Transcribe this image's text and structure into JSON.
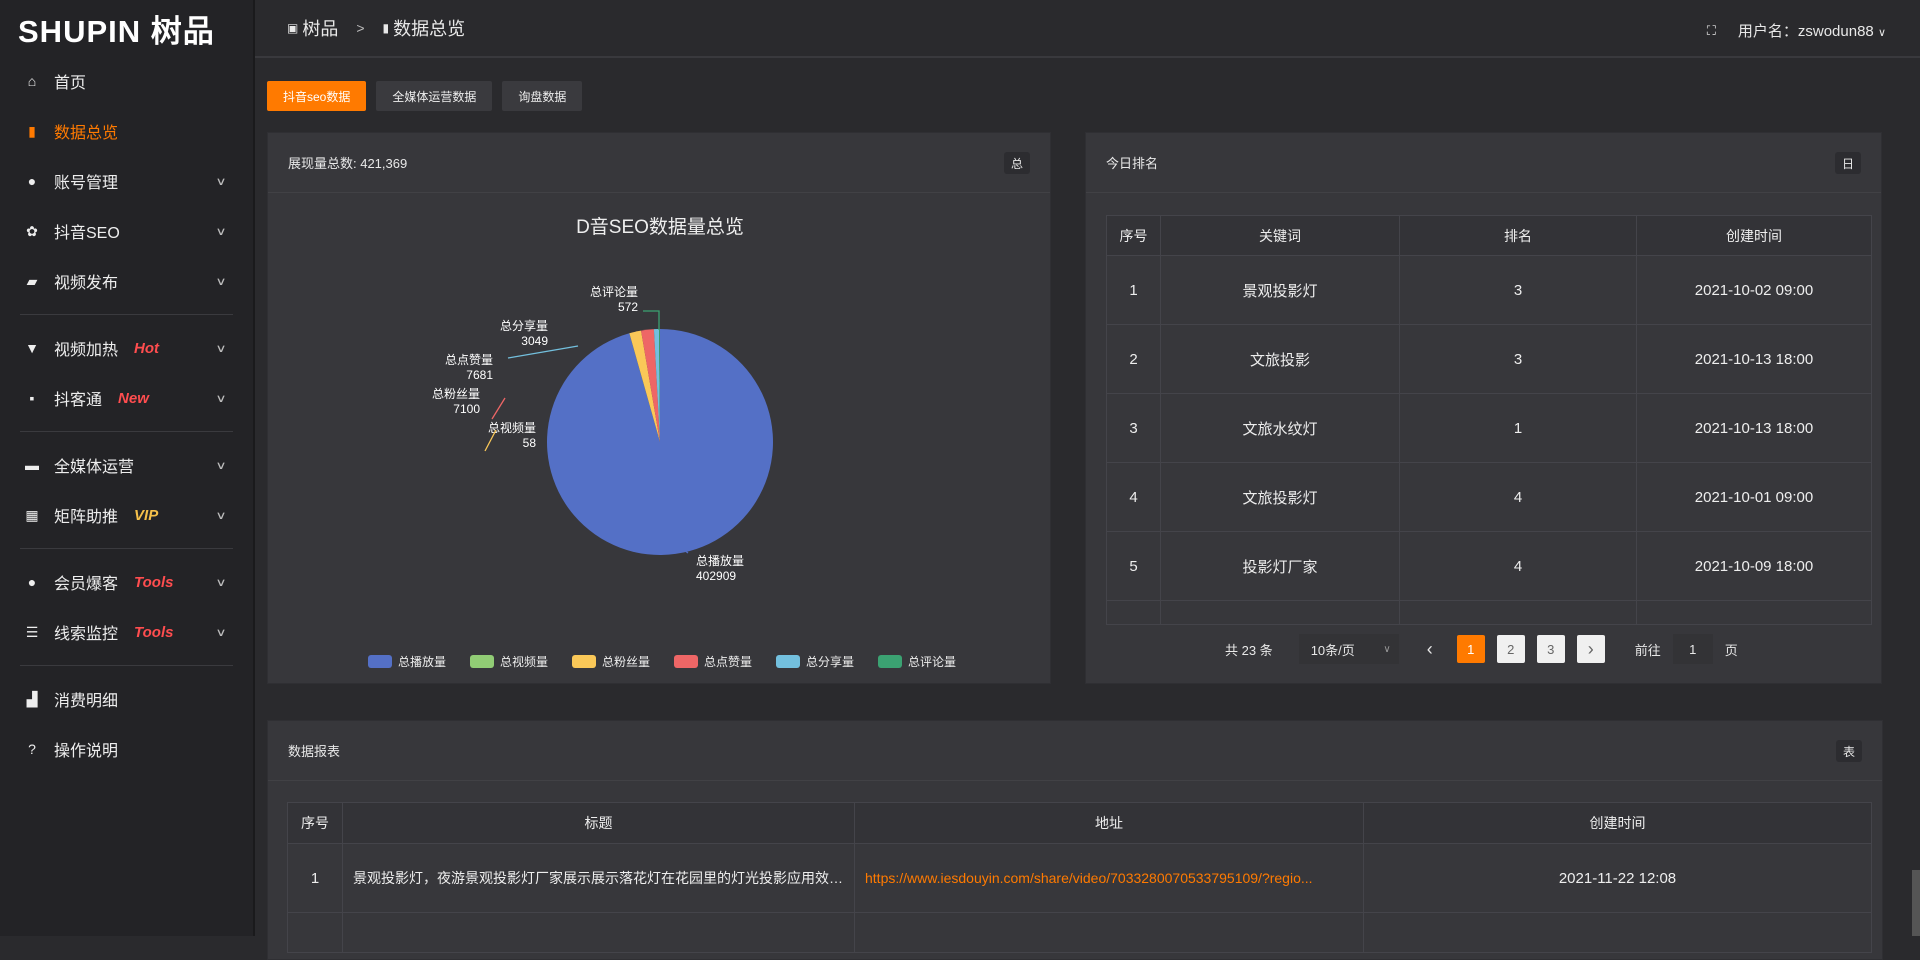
{
  "brand": {
    "logo_text": "SHUPIN 树品"
  },
  "breadcrumb": {
    "home": "树品",
    "separator": ">",
    "current": "数据总览"
  },
  "header": {
    "user_label": "用户名：zswodun88",
    "fullscreen_icon": "fullscreen-icon"
  },
  "sidebar": {
    "items": [
      {
        "label": "首页",
        "icon": "home-icon",
        "glyph": "⌂"
      },
      {
        "label": "数据总览",
        "icon": "bar-chart-icon",
        "glyph": "▮",
        "active": true
      },
      {
        "label": "账号管理",
        "icon": "user-icon",
        "glyph": "●",
        "expandable": true
      },
      {
        "label": "抖音SEO",
        "icon": "gear-icon",
        "glyph": "✿",
        "expandable": true
      },
      {
        "label": "视频发布",
        "icon": "camera-icon",
        "glyph": "▰",
        "expandable": true
      },
      {
        "label": "视频加热",
        "icon": "paint-roller-icon",
        "glyph": "▼",
        "badge": "Hot",
        "expandable": true
      },
      {
        "label": "抖客通",
        "icon": "chat-icon",
        "glyph": "▪",
        "badge": "New",
        "expandable": true
      },
      {
        "label": "全媒体运营",
        "icon": "monitor-icon",
        "glyph": "▬",
        "expandable": true
      },
      {
        "label": "矩阵助推",
        "icon": "grid-icon",
        "glyph": "▦",
        "badge": "VIP",
        "expandable": true
      },
      {
        "label": "会员爆客",
        "icon": "user-icon",
        "glyph": "●",
        "badge": "Tools",
        "expandable": true
      },
      {
        "label": "线索监控",
        "icon": "sliders-icon",
        "glyph": "☰",
        "badge": "Tools",
        "expandable": true
      },
      {
        "label": "消费明细",
        "icon": "wallet-icon",
        "glyph": "▟"
      },
      {
        "label": "操作说明",
        "icon": "question-icon",
        "glyph": "?"
      }
    ]
  },
  "colors": {
    "accent": "#ff7a00",
    "hot": "#ff4d4f",
    "vip": "#f5c04a"
  },
  "tabs": [
    "抖音seo数据",
    "全媒体运营数据",
    "询盘数据"
  ],
  "overview_card": {
    "title": "展现量总数: 421,369",
    "button": "总"
  },
  "chart_data": {
    "type": "pie",
    "title": "D音SEO数据量总览",
    "legend_position": "bottom",
    "series": [
      {
        "name": "总播放量",
        "value": 402909,
        "color": "#5470c6"
      },
      {
        "name": "总视频量",
        "value": 58,
        "color": "#91cc75"
      },
      {
        "name": "总粉丝量",
        "value": 7100,
        "color": "#fac858"
      },
      {
        "name": "总点赞量",
        "value": 7681,
        "color": "#ee6666"
      },
      {
        "name": "总分享量",
        "value": 3049,
        "color": "#73c0de"
      },
      {
        "name": "总评论量",
        "value": 572,
        "color": "#3ba272"
      }
    ]
  },
  "ranking_card": {
    "title": "今日排名",
    "button": "日",
    "columns": [
      "序号",
      "关键词",
      "排名",
      "创建时间"
    ],
    "rows": [
      [
        "1",
        "景观投影灯",
        "3",
        "2021-10-02 09:00"
      ],
      [
        "2",
        "文旅投影",
        "3",
        "2021-10-13 18:00"
      ],
      [
        "3",
        "文旅水纹灯",
        "1",
        "2021-10-13 18:00"
      ],
      [
        "4",
        "文旅投影灯",
        "4",
        "2021-10-01 09:00"
      ],
      [
        "5",
        "投影灯厂家",
        "4",
        "2021-10-09 18:00"
      ]
    ],
    "pagination": {
      "total": "共 23 条",
      "page_size": "10条/页",
      "pages": [
        "1",
        "2",
        "3"
      ],
      "current": "1",
      "goto_label": "前往",
      "goto_value": "1",
      "page_suffix": "页",
      "prev": "‹",
      "next": "›"
    }
  },
  "report_card": {
    "title": "数据报表",
    "button": "表",
    "columns": [
      "序号",
      "标题",
      "地址",
      "创建时间"
    ],
    "rows": [
      [
        "1",
        "景观投影灯，夜游景观投影灯厂家展示展示落花灯在花园里的灯光投影应用效果 #",
        "https://www.iesdouyin.com/share/video/7033280070533795109/?regio...",
        "2021-11-22 12:08"
      ]
    ]
  }
}
